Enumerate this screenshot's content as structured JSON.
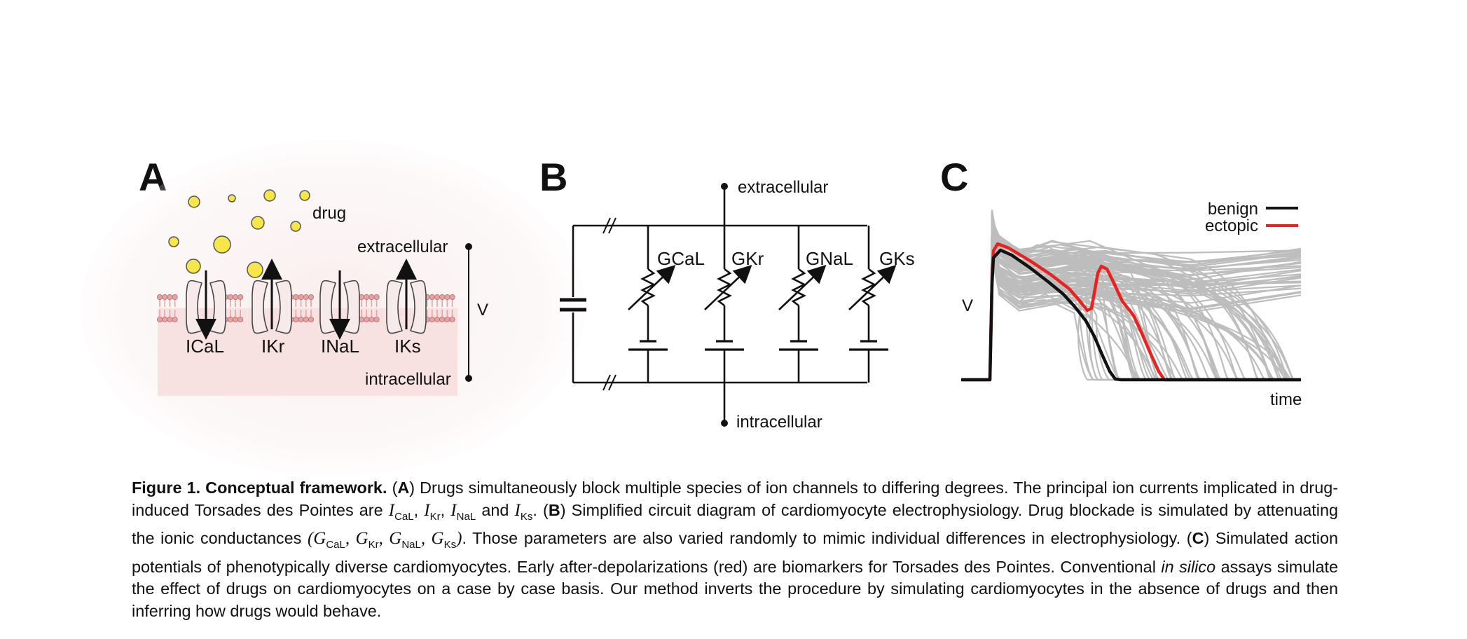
{
  "panels": {
    "A": {
      "letter": "A",
      "drug_label": "drug",
      "extracellular_label": "extracellular",
      "intracellular_label": "intracellular",
      "voltage_label": "V",
      "currents": [
        "ICaL",
        "IKr",
        "INaL",
        "IKs"
      ]
    },
    "B": {
      "letter": "B",
      "extracellular_label": "extracellular",
      "intracellular_label": "intracellular",
      "conductances": [
        "GCaL",
        "GKr",
        "GNaL",
        "GKs"
      ]
    },
    "C": {
      "letter": "C",
      "ylabel": "V",
      "xlabel": "time",
      "legend": [
        {
          "name": "benign",
          "color": "#111111"
        },
        {
          "name": "ectopic",
          "color": "#e8231f"
        }
      ]
    }
  },
  "colors": {
    "drug": "#f7e64a",
    "membrane": "#e7a2a2",
    "cytoplasm": "#f7e1e1",
    "population_traces": "#bdbdbd",
    "benign": "#111111",
    "ectopic": "#e8231f"
  },
  "chart_data": {
    "type": "line",
    "xlabel": "time",
    "ylabel": "V",
    "series": [
      {
        "name": "benign"
      },
      {
        "name": "ectopic"
      }
    ]
  },
  "caption": {
    "title": "Figure 1. Conceptual framework.",
    "s1_pre": "(",
    "s1_ref": "A",
    "s1_text": ") Drugs simultaneously block multiple species of ion channels to differing degrees. The principal ion currents implicated in drug-induced Torsades des Pointes are ",
    "i_sym": "I",
    "i_subs": [
      "CaL",
      "Kr",
      "NaL",
      "Ks"
    ],
    "and_word": "and",
    "s2_ref": "B",
    "s2_text": ") Simplified circuit diagram of cardiomyocyte electrophysiology. Drug blockade is simulated by attenuating the ionic conductances ",
    "g_sym": "G",
    "g_subs": [
      "CaL",
      "Kr",
      "NaL",
      "Ks"
    ],
    "s2_tail": ". Those parameters are also varied randomly to mimic individual differences in electrophysiology. (",
    "s3_ref": "C",
    "s3_text": ") Simulated action potentials of phenotypically diverse cardiomyocytes. Early after-depolarizations (red) are biomarkers for Torsades des Pointes. Conventional ",
    "s3_italic": "in silico",
    "s3_tail": " assays simulate the effect of drugs on cardiomyocytes on a case by case basis. Our method inverts the procedure by simulating cardiomyocytes in the absence of drugs and then inferring how drugs would behave."
  }
}
